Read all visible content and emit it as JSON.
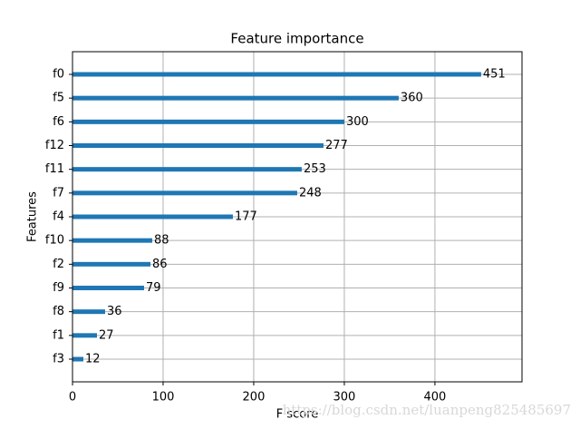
{
  "chart_data": {
    "type": "barh",
    "title": "Feature importance",
    "x_label": "F score",
    "y_label": "Features",
    "categories": [
      "f0",
      "f5",
      "f6",
      "f12",
      "f11",
      "f7",
      "f4",
      "f10",
      "f2",
      "f9",
      "f8",
      "f1",
      "f3"
    ],
    "values": [
      451,
      360,
      300,
      277,
      253,
      248,
      177,
      88,
      86,
      79,
      36,
      27,
      12
    ],
    "color": "#1f77b4",
    "xlim": [
      0,
      496.1
    ],
    "xticks": [
      0,
      100,
      200,
      300,
      400
    ],
    "grid": true,
    "watermark": "https://blog.csdn.net/luanpeng825485697"
  }
}
